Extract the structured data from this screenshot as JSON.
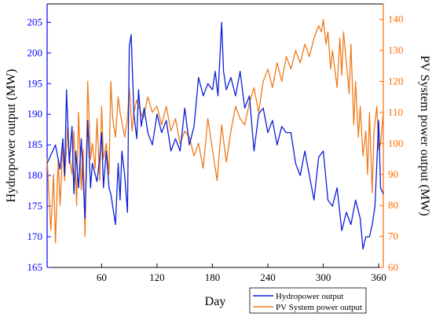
{
  "chart_data": {
    "type": "line",
    "xlabel": "Day",
    "ylabel_left": "Hydropower output (MW)",
    "ylabel_right": "PV System power output (MW)",
    "xlim": [
      1,
      365
    ],
    "xticks": [
      60,
      120,
      180,
      240,
      300,
      360
    ],
    "ylim_left": [
      165,
      208
    ],
    "yticks_left": [
      165,
      170,
      175,
      180,
      185,
      190,
      195,
      200,
      205
    ],
    "ylim_right": [
      60,
      145
    ],
    "yticks_right": [
      60,
      70,
      80,
      90,
      100,
      110,
      120,
      130,
      140
    ],
    "legend_position": "bottom-right",
    "colors": {
      "left_axis": "#0000ff",
      "right_axis": "#ff6a00",
      "hydro": "#0b1fd6",
      "pv": "#f07a1a"
    },
    "series": [
      {
        "name": "Hydropower output",
        "axis": "left",
        "x": [
          1,
          10,
          15,
          18,
          20,
          22,
          25,
          28,
          30,
          32,
          35,
          38,
          42,
          45,
          48,
          50,
          55,
          58,
          60,
          62,
          65,
          68,
          70,
          72,
          75,
          78,
          80,
          82,
          85,
          88,
          90,
          92,
          95,
          98,
          100,
          103,
          106,
          110,
          115,
          120,
          125,
          130,
          135,
          140,
          145,
          150,
          155,
          160,
          165,
          170,
          175,
          180,
          183,
          186,
          190,
          192,
          195,
          200,
          205,
          210,
          215,
          220,
          225,
          230,
          235,
          240,
          245,
          250,
          255,
          260,
          265,
          270,
          275,
          280,
          285,
          290,
          295,
          300,
          305,
          310,
          315,
          320,
          325,
          330,
          335,
          340,
          343,
          346,
          350,
          353,
          356,
          360,
          362,
          365
        ],
        "y": [
          182,
          185,
          181,
          186,
          180,
          194,
          182,
          188,
          177,
          184,
          178,
          186,
          173,
          189,
          178,
          182,
          179,
          183,
          187,
          178,
          184,
          178,
          177,
          175,
          172,
          182,
          176,
          184,
          180,
          174,
          201,
          203,
          190,
          186,
          194,
          188,
          191,
          187,
          185,
          190,
          187,
          189,
          184,
          186,
          184,
          191,
          185,
          188,
          196,
          193,
          195,
          194,
          197,
          193,
          205,
          197,
          194,
          196,
          193,
          197,
          191,
          193,
          184,
          190,
          191,
          187,
          189,
          185,
          188,
          187,
          187,
          182,
          180,
          184,
          180,
          176,
          183,
          184,
          176,
          175,
          178,
          171,
          174,
          172,
          176,
          173,
          168,
          170,
          170,
          172,
          175,
          189,
          178,
          177
        ]
      },
      {
        "name": "PV System power output",
        "axis": "right",
        "x": [
          1,
          5,
          8,
          10,
          13,
          15,
          18,
          20,
          23,
          25,
          28,
          30,
          33,
          35,
          38,
          40,
          42,
          45,
          48,
          50,
          53,
          55,
          58,
          60,
          62,
          65,
          68,
          70,
          72,
          75,
          78,
          80,
          85,
          88,
          90,
          93,
          95,
          98,
          100,
          105,
          110,
          115,
          120,
          125,
          130,
          135,
          140,
          145,
          150,
          155,
          160,
          165,
          170,
          175,
          180,
          185,
          190,
          195,
          200,
          205,
          210,
          215,
          220,
          225,
          230,
          235,
          240,
          245,
          250,
          255,
          260,
          265,
          270,
          275,
          280,
          285,
          290,
          295,
          298,
          300,
          303,
          305,
          308,
          310,
          315,
          318,
          320,
          322,
          325,
          328,
          330,
          333,
          335,
          338,
          340,
          343,
          346,
          348,
          350,
          353,
          355,
          358,
          360,
          362,
          365
        ],
        "y": [
          95,
          72,
          90,
          68,
          95,
          80,
          100,
          88,
          105,
          96,
          90,
          104,
          80,
          110,
          85,
          98,
          70,
          120,
          95,
          100,
          92,
          108,
          88,
          112,
          95,
          100,
          90,
          120,
          108,
          102,
          115,
          110,
          102,
          108,
          118,
          104,
          110,
          114,
          112,
          108,
          115,
          110,
          112,
          106,
          112,
          104,
          108,
          100,
          104,
          102,
          96,
          100,
          92,
          108,
          98,
          88,
          106,
          94,
          104,
          112,
          108,
          106,
          113,
          118,
          110,
          120,
          124,
          118,
          126,
          120,
          128,
          124,
          130,
          126,
          132,
          128,
          134,
          138,
          136,
          140,
          132,
          136,
          124,
          130,
          118,
          134,
          122,
          136,
          126,
          116,
          132,
          106,
          120,
          102,
          112,
          96,
          104,
          90,
          110,
          84,
          104,
          112,
          98,
          100,
          110
        ]
      }
    ]
  },
  "legend": {
    "items": [
      {
        "label": "Hydropower output",
        "color": "#0b1fd6"
      },
      {
        "label": "PV System power output",
        "color": "#f07a1a"
      }
    ]
  }
}
